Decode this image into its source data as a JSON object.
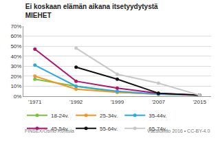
{
  "chart_data": {
    "type": "line",
    "title": "Ei koskaan elämän aikana itsetyydytystä",
    "subtitle": "MIEHET",
    "categories": [
      "'1971",
      "'1992",
      "'1999",
      "'2007",
      "'2015"
    ],
    "series": [
      {
        "name": "18-24v.",
        "color": "#7ac143",
        "values": [
          17,
          10,
          4,
          2,
          1
        ]
      },
      {
        "name": "25-34v.",
        "color": "#f7941d",
        "values": [
          20,
          7,
          4,
          2,
          1
        ]
      },
      {
        "name": "35-44v.",
        "color": "#29abe2",
        "values": [
          31,
          10,
          5,
          2,
          1
        ]
      },
      {
        "name": "45-54v.",
        "color": "#b0146e",
        "values": [
          47,
          15,
          8,
          3,
          1
        ]
      },
      {
        "name": "55-64v.",
        "color": "#111111",
        "values": [
          null,
          29,
          17,
          3,
          1
        ]
      },
      {
        "name": "65-74v.",
        "color": "#c8c8c8",
        "values": [
          null,
          48,
          22,
          13,
          1
        ]
      }
    ],
    "ylim": [
      0,
      70
    ],
    "yticks": [
      {
        "value": 0,
        "label": "0%"
      },
      {
        "value": 10,
        "label": "10%"
      },
      {
        "value": 20,
        "label": "20%"
      },
      {
        "value": 30,
        "label": "30%"
      },
      {
        "value": 40,
        "label": "40%"
      },
      {
        "value": 50,
        "label": "50%"
      },
      {
        "value": 60,
        "label": "60%"
      },
      {
        "value": 70,
        "label": "70%"
      }
    ],
    "grid": true,
    "legend": "bottom",
    "marker": "circle",
    "line_style": "solid",
    "annotations": [
      "FINSEX/Osmo Kontula",
      "Väestöliitto 2016 • CC-BY-4.0"
    ]
  }
}
